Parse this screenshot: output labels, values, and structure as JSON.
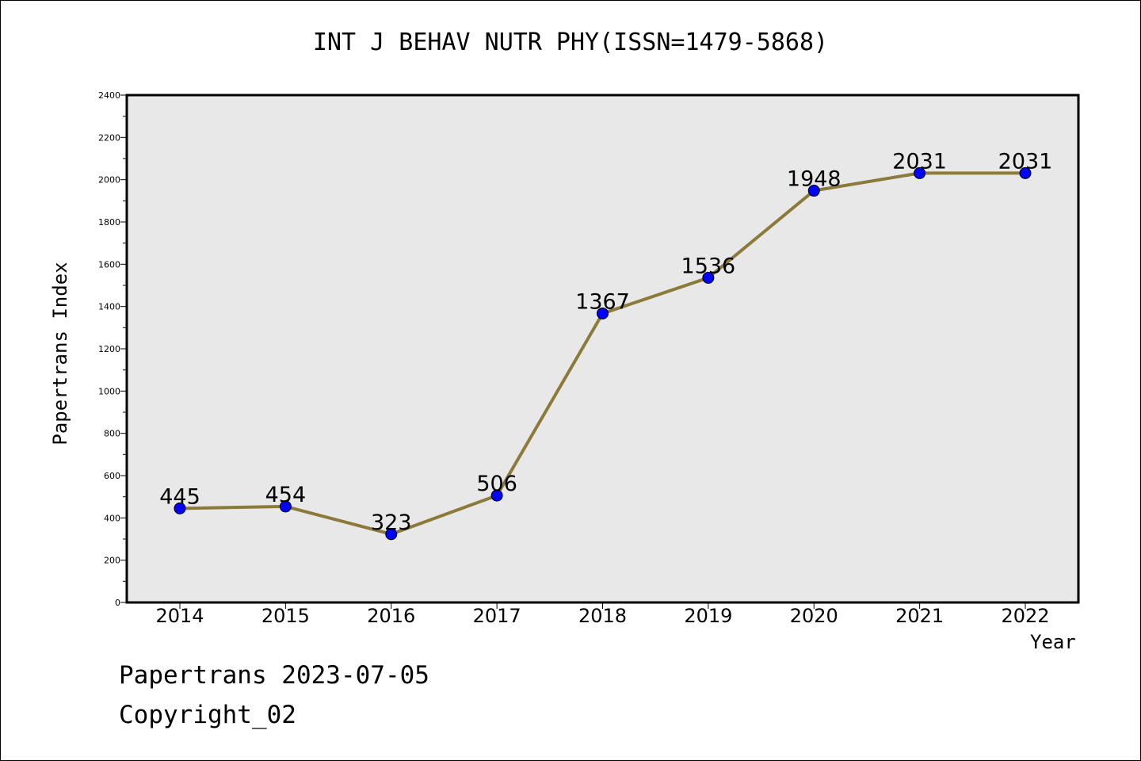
{
  "title": "INT J BEHAV NUTR PHY(ISSN=1479-5868)",
  "footer": {
    "date_text": "Papertrans 2023-07-05",
    "copyright_text": "Copyright_02"
  },
  "colors": {
    "plot_background": "#e8e8e8",
    "line": "#8b7a3a",
    "marker": "#0000ff"
  },
  "chart_data": {
    "type": "line",
    "title": "INT J BEHAV NUTR PHY(ISSN=1479-5868)",
    "xlabel": "Year",
    "ylabel": "Papertrans Index",
    "x": [
      "2014",
      "2015",
      "2016",
      "2017",
      "2018",
      "2019",
      "2020",
      "2021",
      "2022"
    ],
    "values": [
      445,
      454,
      323,
      506,
      1367,
      1536,
      1948,
      2031,
      2031
    ],
    "data_labels": [
      "445",
      "454",
      "323",
      "506",
      "1367",
      "1536",
      "1948",
      "2031",
      "2031"
    ],
    "ylim": [
      0,
      2400
    ],
    "yticks": [
      "0",
      "200",
      "400",
      "600",
      "800",
      "1000",
      "1200",
      "1400",
      "1600",
      "1800",
      "2000",
      "2200",
      "2400"
    ],
    "grid": false,
    "legend": "none"
  }
}
